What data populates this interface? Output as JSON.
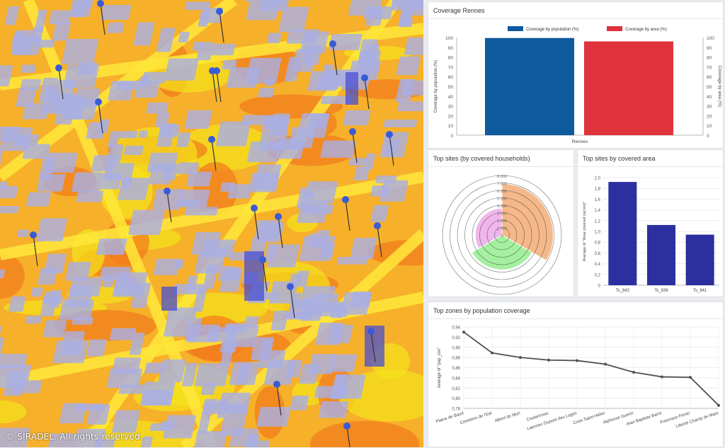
{
  "map": {
    "copyright": "© SIRADEL. All rights reserved.",
    "colors": {
      "heat_low": "#f5e41b",
      "heat_mid": "#f6b02a",
      "heat_high": "#f27a1d",
      "building": "#a9aee3",
      "building_dark": "#4a4fcf",
      "pin": "#3a5bd6"
    }
  },
  "coverage_card": {
    "title": "Coverage Rennes",
    "chart_data": {
      "type": "bar",
      "categories": [
        "Rennes"
      ],
      "series": [
        {
          "name": "Coverage by population (%)",
          "values": [
            99.5
          ],
          "color": "#0d5a9c"
        },
        {
          "name": "Coverage by area (%)",
          "values": [
            96
          ],
          "color": "#e0323c"
        }
      ],
      "ylabel": "Coverage by population (%)",
      "y2label": "Coverage by area (%)",
      "ylim": [
        0,
        100
      ],
      "yticks": [
        "0",
        "10",
        "20",
        "30",
        "40",
        "50",
        "60",
        "70",
        "80",
        "90",
        "100"
      ],
      "legend": "top",
      "grid": false
    }
  },
  "households_card": {
    "title": "Top sites (by covered households)",
    "chart_data": {
      "type": "pie",
      "subtype": "polar-area",
      "rlim": [
        0,
        8000
      ],
      "rticks": [
        "0",
        "1 000",
        "2 000",
        "3 000",
        "4 000",
        "5 000",
        "6 000",
        "7 000",
        "8 000"
      ],
      "slices": [
        {
          "value": 6900,
          "color": "#f5b88a"
        },
        {
          "value": 4700,
          "color": "#a4f0a0"
        },
        {
          "value": 3600,
          "color": "#f0b6ec"
        }
      ]
    }
  },
  "area_card": {
    "title": "Top sites by covered area",
    "chart_data": {
      "type": "bar",
      "categories": [
        "Ts_842",
        "Ts_836",
        "Ts_841"
      ],
      "values": [
        1.92,
        1.12,
        0.94
      ],
      "ylabel": "Average of \"Area covered (sq km)\"",
      "ylim": [
        0,
        2.0
      ],
      "yticks": [
        "0",
        "0,2",
        "0,4",
        "0,6",
        "0,8",
        "1,0",
        "1,2",
        "1,4",
        "1,6",
        "1,8",
        "2,0"
      ],
      "color": "#2c2fa0",
      "grid": true
    }
  },
  "zones_card": {
    "title": "Top zones by population coverage",
    "chart_data": {
      "type": "line",
      "categories": [
        "Plaine de Baud",
        "Cimetiere de l'Est",
        "Albert de Mun",
        "Coutanceau",
        "Laennec Dupont des Loges",
        "Croix Saint-Hélier",
        "Alphonse Guerin",
        "Jean Baptiste Barre",
        "Francisco Ferrer",
        "Liberté Champ de Mars"
      ],
      "values": [
        0.93,
        0.889,
        0.88,
        0.875,
        0.874,
        0.867,
        0.851,
        0.842,
        0.841,
        0.786
      ],
      "ylabel": "Average of \"pop_cov\"",
      "ylim": [
        0.78,
        0.94
      ],
      "yticks": [
        "0,78",
        "0,80",
        "0,82",
        "0,84",
        "0,86",
        "0,88",
        "0,90",
        "0,92",
        "0,94"
      ],
      "color": "#50505a",
      "grid": true
    }
  }
}
